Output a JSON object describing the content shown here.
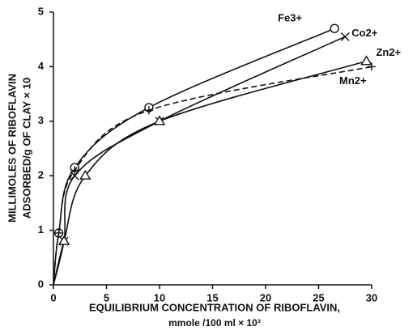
{
  "chart_data": {
    "type": "line",
    "ylabel": [
      "MILLIMOLES OF RIBOFLAVIN",
      "ADSORBED/g  OF CLAY × 10"
    ],
    "xlabel": [
      "EQUILIBRIUM CONCENTRATION OF RIBOFLAVIN,",
      "mmole /100 ml × 10³"
    ],
    "xlim": [
      0,
      30
    ],
    "xticks": [
      0,
      5,
      10,
      15,
      20,
      25,
      30
    ],
    "ylim": [
      0,
      5
    ],
    "yticks": [
      0,
      1,
      2,
      3,
      4,
      5
    ],
    "series": [
      {
        "name": "Fe3+",
        "color": "#111111",
        "marker": "circle",
        "dash": false,
        "x": [
          0,
          0.5,
          2,
          9,
          26.5
        ],
        "values": [
          0,
          0.95,
          2.15,
          3.25,
          4.7
        ]
      },
      {
        "name": "Co2+",
        "color": "#111111",
        "marker": "cross",
        "dash": false,
        "x": [
          0,
          1,
          2,
          10,
          27.5
        ],
        "values": [
          0,
          0.8,
          2.0,
          3.0,
          4.55
        ]
      },
      {
        "name": "Zn2+",
        "color": "#111111",
        "marker": "triangle",
        "dash": false,
        "x": [
          0,
          1,
          3,
          10,
          29.5
        ],
        "values": [
          0,
          0.8,
          2.0,
          3.0,
          4.1
        ]
      },
      {
        "name": "Mn2+",
        "color": "#111111",
        "marker": "plus",
        "dash": true,
        "x": [
          0,
          0.5,
          2,
          9,
          30
        ],
        "values": [
          0,
          0.95,
          2.1,
          3.2,
          4.0
        ]
      }
    ]
  }
}
